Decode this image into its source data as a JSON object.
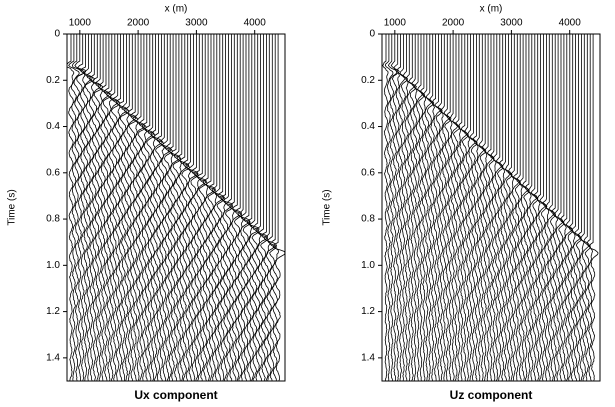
{
  "chart_data": [
    {
      "type": "wiggle",
      "title": "Ux component",
      "xlabel": "x (m)",
      "ylabel": "Time (s)",
      "xlim": [
        780,
        4520
      ],
      "xticks": [
        1000,
        2000,
        3000,
        4000
      ],
      "ylim": [
        0,
        1.5
      ],
      "yticks": [
        0,
        0.2,
        0.4,
        0.6,
        0.8,
        {
          "value": 1.0,
          "label": "1.0"
        },
        1.2,
        1.4
      ]
    },
    {
      "type": "wiggle",
      "title": "Uz component",
      "xlabel": "x (m)",
      "ylabel": "Time (s)",
      "xlim": [
        780,
        4520
      ],
      "xticks": [
        1000,
        2000,
        3000,
        4000
      ],
      "ylim": [
        0,
        1.5
      ],
      "yticks": [
        0,
        0.2,
        0.4,
        0.6,
        0.8,
        {
          "value": 1.0,
          "label": "1.0"
        },
        1.2,
        1.4
      ]
    }
  ]
}
